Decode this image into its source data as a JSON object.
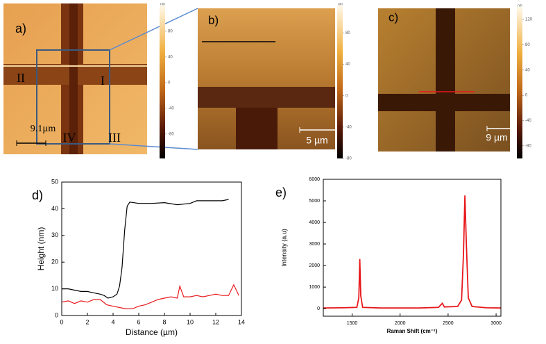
{
  "panels": [
    {
      "label": "a)",
      "regions": [
        "II",
        "I",
        "IV",
        "III"
      ],
      "scale_bar": "9.1µm",
      "colorbar_unit": "nm",
      "clim": [
        -118,
        120
      ],
      "colorbar_ticks": [
        80,
        40,
        0,
        -40,
        -80
      ]
    },
    {
      "label": "b)",
      "scale_bar": "5 µm",
      "colorbar_unit": "nm",
      "clim": [
        -80,
        115
      ],
      "colorbar_ticks": [
        80,
        40,
        0,
        -40,
        -80
      ]
    },
    {
      "label": "c)",
      "scale_bar": "9 µm",
      "colorbar_unit": "nm",
      "clim": [
        -100,
        140
      ],
      "colorbar_ticks": [
        120,
        80,
        40,
        0,
        -40,
        -80
      ]
    }
  ],
  "chart_data": [
    {
      "type": "line",
      "panel_label": "d)",
      "xlabel": "Distance (µm)",
      "ylabel": "Height (nm)",
      "xlim": [
        0,
        14
      ],
      "xticks": [
        0,
        2,
        4,
        6,
        8,
        10,
        12,
        14
      ],
      "ylim": [
        0,
        50
      ],
      "yticks": [
        0,
        10,
        20,
        30,
        40,
        50
      ],
      "series": [
        {
          "color": "#000000",
          "x": [
            0,
            0.5,
            1,
            1.5,
            2,
            2.5,
            3,
            3.3,
            3.6,
            4,
            4.3,
            4.5,
            4.7,
            4.9,
            5.1,
            5.3,
            6,
            7,
            8,
            9,
            10,
            10.5,
            11,
            12,
            12.5,
            13
          ],
          "values": [
            10,
            10,
            9.5,
            9,
            9,
            8.5,
            8,
            7.5,
            6.5,
            7,
            8,
            11,
            18,
            32,
            41,
            42.5,
            42,
            42,
            42.3,
            41.5,
            42,
            43,
            43,
            43,
            43,
            43.5
          ]
        },
        {
          "color": "#e8181b",
          "x": [
            0,
            0.5,
            1,
            1.5,
            2,
            2.5,
            3,
            3.5,
            4,
            4.5,
            5,
            5.5,
            6,
            6.5,
            7,
            7.5,
            8,
            8.5,
            9,
            9.2,
            9.5,
            10,
            10.5,
            11,
            11.5,
            12,
            12.5,
            13,
            13.4,
            13.8
          ],
          "values": [
            5,
            5.5,
            4.5,
            5.5,
            5,
            6,
            6,
            4,
            3.5,
            3,
            2.5,
            2.5,
            3.5,
            4,
            5,
            6,
            6.5,
            7,
            6.5,
            11,
            7,
            7,
            7.5,
            7,
            7.5,
            8,
            7.5,
            7.5,
            11.5,
            7.5
          ]
        }
      ]
    },
    {
      "type": "line",
      "panel_label": "e)",
      "xlabel": "Raman Shift (cm⁻¹)",
      "ylabel": "Intensity (a.u)",
      "xlim": [
        1200,
        3050
      ],
      "xticks": [
        1500,
        2000,
        2500,
        3000
      ],
      "ylim": [
        -350,
        6000
      ],
      "yticks": [
        0,
        1000,
        2000,
        3000,
        4000,
        5000,
        6000
      ],
      "series": [
        {
          "color": "#e8181b",
          "x": [
            1200,
            1400,
            1550,
            1570,
            1580,
            1590,
            1610,
            1800,
            2000,
            2200,
            2400,
            2440,
            2460,
            2600,
            2640,
            2660,
            2675,
            2690,
            2710,
            2750,
            2900,
            3050
          ],
          "values": [
            30,
            40,
            60,
            500,
            2300,
            600,
            60,
            30,
            30,
            30,
            60,
            250,
            80,
            100,
            400,
            2500,
            5250,
            3000,
            500,
            100,
            40,
            30
          ]
        }
      ]
    }
  ]
}
